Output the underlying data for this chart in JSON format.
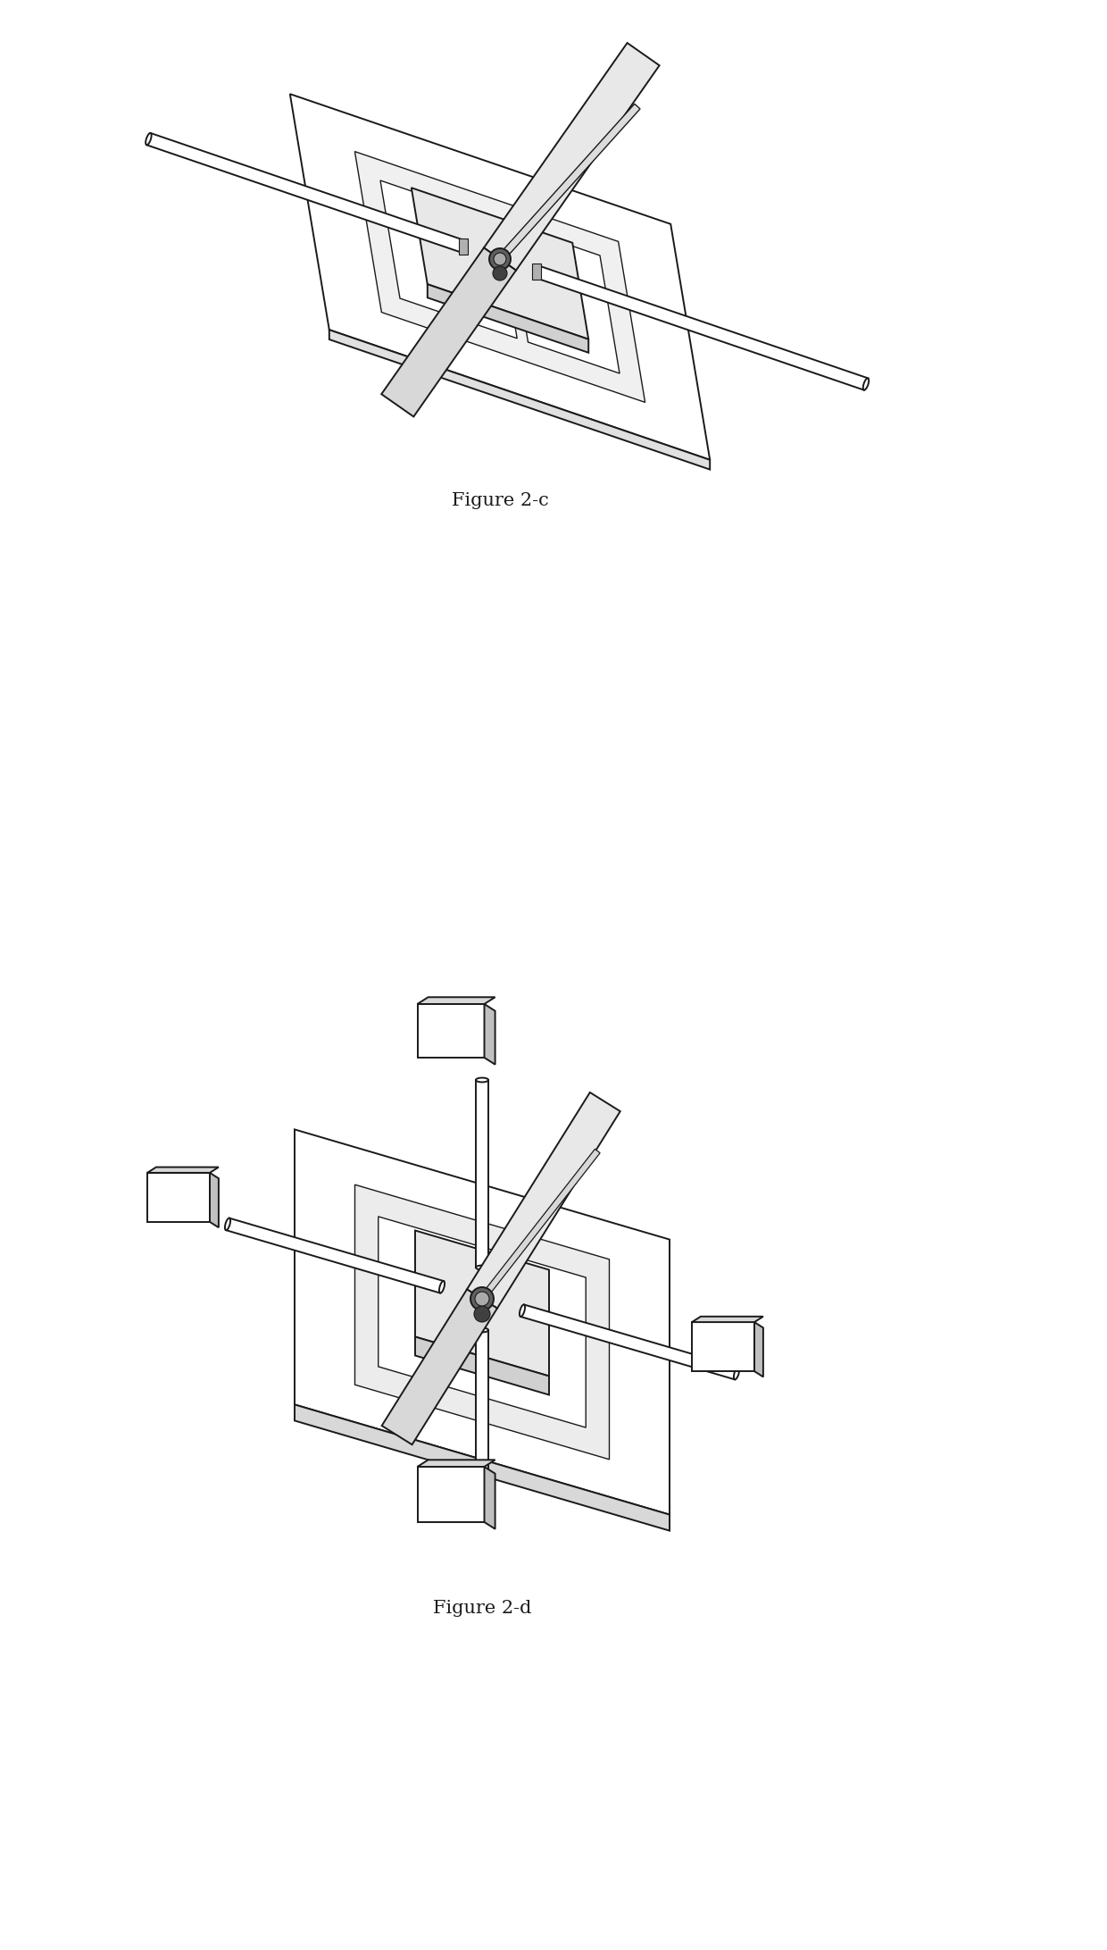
{
  "fig_width": 12.4,
  "fig_height": 21.83,
  "background_color": "#ffffff",
  "line_color": "#1a1a1a",
  "fig2c_label": "Figure 2-c",
  "fig2d_label": "Figure 2-d",
  "label_fontsize": 15,
  "label_font": "serif"
}
